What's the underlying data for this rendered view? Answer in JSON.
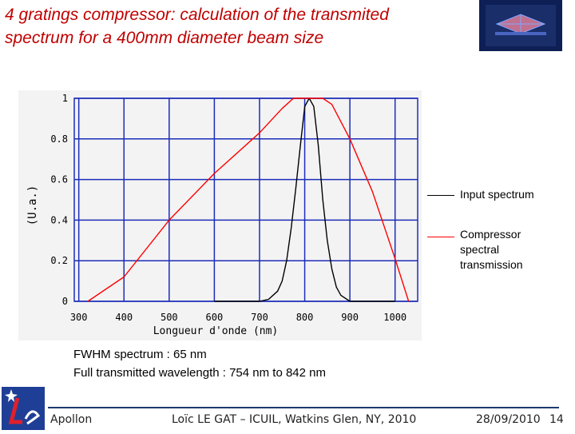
{
  "header": {
    "title_line1": "4 gratings compressor: calculation of the transmited",
    "title_line2": "spectrum for a 400mm diameter beam size"
  },
  "chart_data": {
    "type": "line",
    "xlabel": "Longueur d'onde (nm)",
    "ylabel": "(U.a.)",
    "xlim": [
      290,
      1050
    ],
    "ylim": [
      0,
      1
    ],
    "x_ticks": [
      "300",
      "400",
      "500",
      "600",
      "700",
      "800",
      "900",
      "1000"
    ],
    "y_ticks": [
      "0",
      "0.2",
      "0.4",
      "0.6",
      "0.8",
      "1"
    ],
    "grid": true,
    "legend_position": "right",
    "series": [
      {
        "name": "Input spectrum",
        "color": "#000000",
        "x": [
          600,
          700,
          720,
          740,
          750,
          760,
          770,
          780,
          790,
          800,
          810,
          820,
          830,
          840,
          850,
          860,
          870,
          880,
          900,
          950,
          1000
        ],
        "y": [
          0,
          0,
          0.01,
          0.05,
          0.1,
          0.2,
          0.36,
          0.55,
          0.76,
          0.96,
          1.0,
          0.96,
          0.77,
          0.5,
          0.3,
          0.16,
          0.07,
          0.03,
          0.0,
          0,
          0
        ]
      },
      {
        "name": "Compressor spectral transmission",
        "color": "#ff0000",
        "x": [
          320,
          400,
          500,
          600,
          700,
          750,
          775,
          800,
          840,
          860,
          900,
          950,
          1000,
          1030
        ],
        "y": [
          0,
          0.12,
          0.4,
          0.63,
          0.83,
          0.95,
          1.0,
          1.0,
          1.0,
          0.97,
          0.8,
          0.54,
          0.21,
          0
        ],
        "flat_top_width": "wide"
      }
    ]
  },
  "legend": {
    "input_label": "Input spectrum",
    "compressor_line1": "Compressor",
    "compressor_line2": "spectral",
    "compressor_line3": "transmission"
  },
  "notes": {
    "fwhm": "FWHM spectrum  : 65 nm",
    "range": "Full transmitted wavelength  : 754 nm to 842 nm"
  },
  "footer": {
    "left": "Apollon",
    "center": "Loïc LE GAT – ICUIL, Watkins Glen, NY, 2010",
    "date": "28/09/2010",
    "page": "14"
  },
  "colors": {
    "title": "#c00000",
    "grid": "#1c2db8",
    "chart_bg": "#f3f3f3",
    "footer_rule": "#1f3a6e"
  }
}
